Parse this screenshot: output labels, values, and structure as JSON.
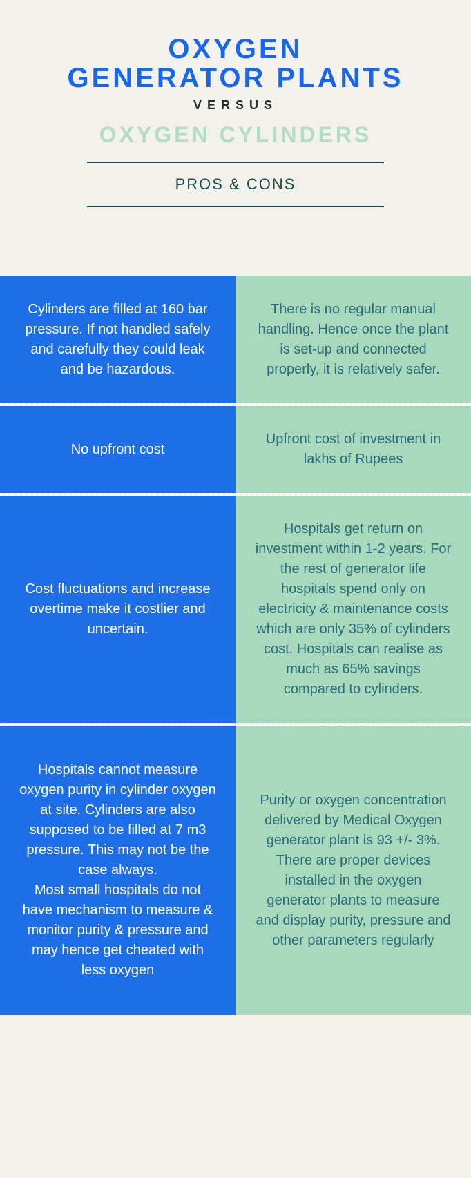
{
  "colors": {
    "page_bg": "#f2f1eb",
    "title_blue": "#1a66e8",
    "versus_text": "#242a2e",
    "subtitle_mint": "#b4dcc6",
    "divider": "#1c4c4a",
    "left_bg": "#1e6ee8",
    "left_text": "#ffffff",
    "right_bg": "#a9d9bd",
    "right_text": "#2a6c7a",
    "dot_border": "#ffffff"
  },
  "typography": {
    "title_fontsize": 40,
    "title_weight": 800,
    "title_letter_spacing": 4,
    "versus_fontsize": 18,
    "versus_letter_spacing": 8,
    "subtitle_fontsize": 32,
    "label_fontsize": 22,
    "cell_fontsize": 20
  },
  "header": {
    "title_line1": "OXYGEN",
    "title_line2": "GENERATOR PLANTS",
    "versus": "VERSUS",
    "subtitle": "OXYGEN CYLINDERS",
    "pros_cons_label": "PROS & CONS"
  },
  "rows": [
    {
      "left": "Cylinders are filled at 160 bar pressure. If not handled safely and carefully they could leak and be hazardous.",
      "right": "There is no regular manual handling. Hence once the plant is set-up and connected properly, it is relatively safer."
    },
    {
      "left": "No upfront cost",
      "right": "Upfront cost of investment in lakhs of Rupees"
    },
    {
      "left": "Cost fluctuations and increase overtime make it costlier and uncertain.",
      "right": "Hospitals get return on investment within 1-2 years. For the rest of generator life hospitals spend only on electricity & maintenance costs which are only 35% of cylinders cost. Hospitals can realise as much as 65% savings compared to cylinders."
    },
    {
      "left": "Hospitals cannot measure oxygen purity in cylinder oxygen at site. Cylinders are also supposed to be filled at 7 m3 pressure. This may not be the case always.\nMost small hospitals do not have mechanism to measure & monitor purity & pressure and may hence get cheated with less oxygen",
      "right": "Purity or oxygen concentration delivered by Medical Oxygen generator plant is 93 +/- 3%. There are proper devices installed in the oxygen generator plants to measure and display purity, pressure and other parameters regularly"
    }
  ]
}
